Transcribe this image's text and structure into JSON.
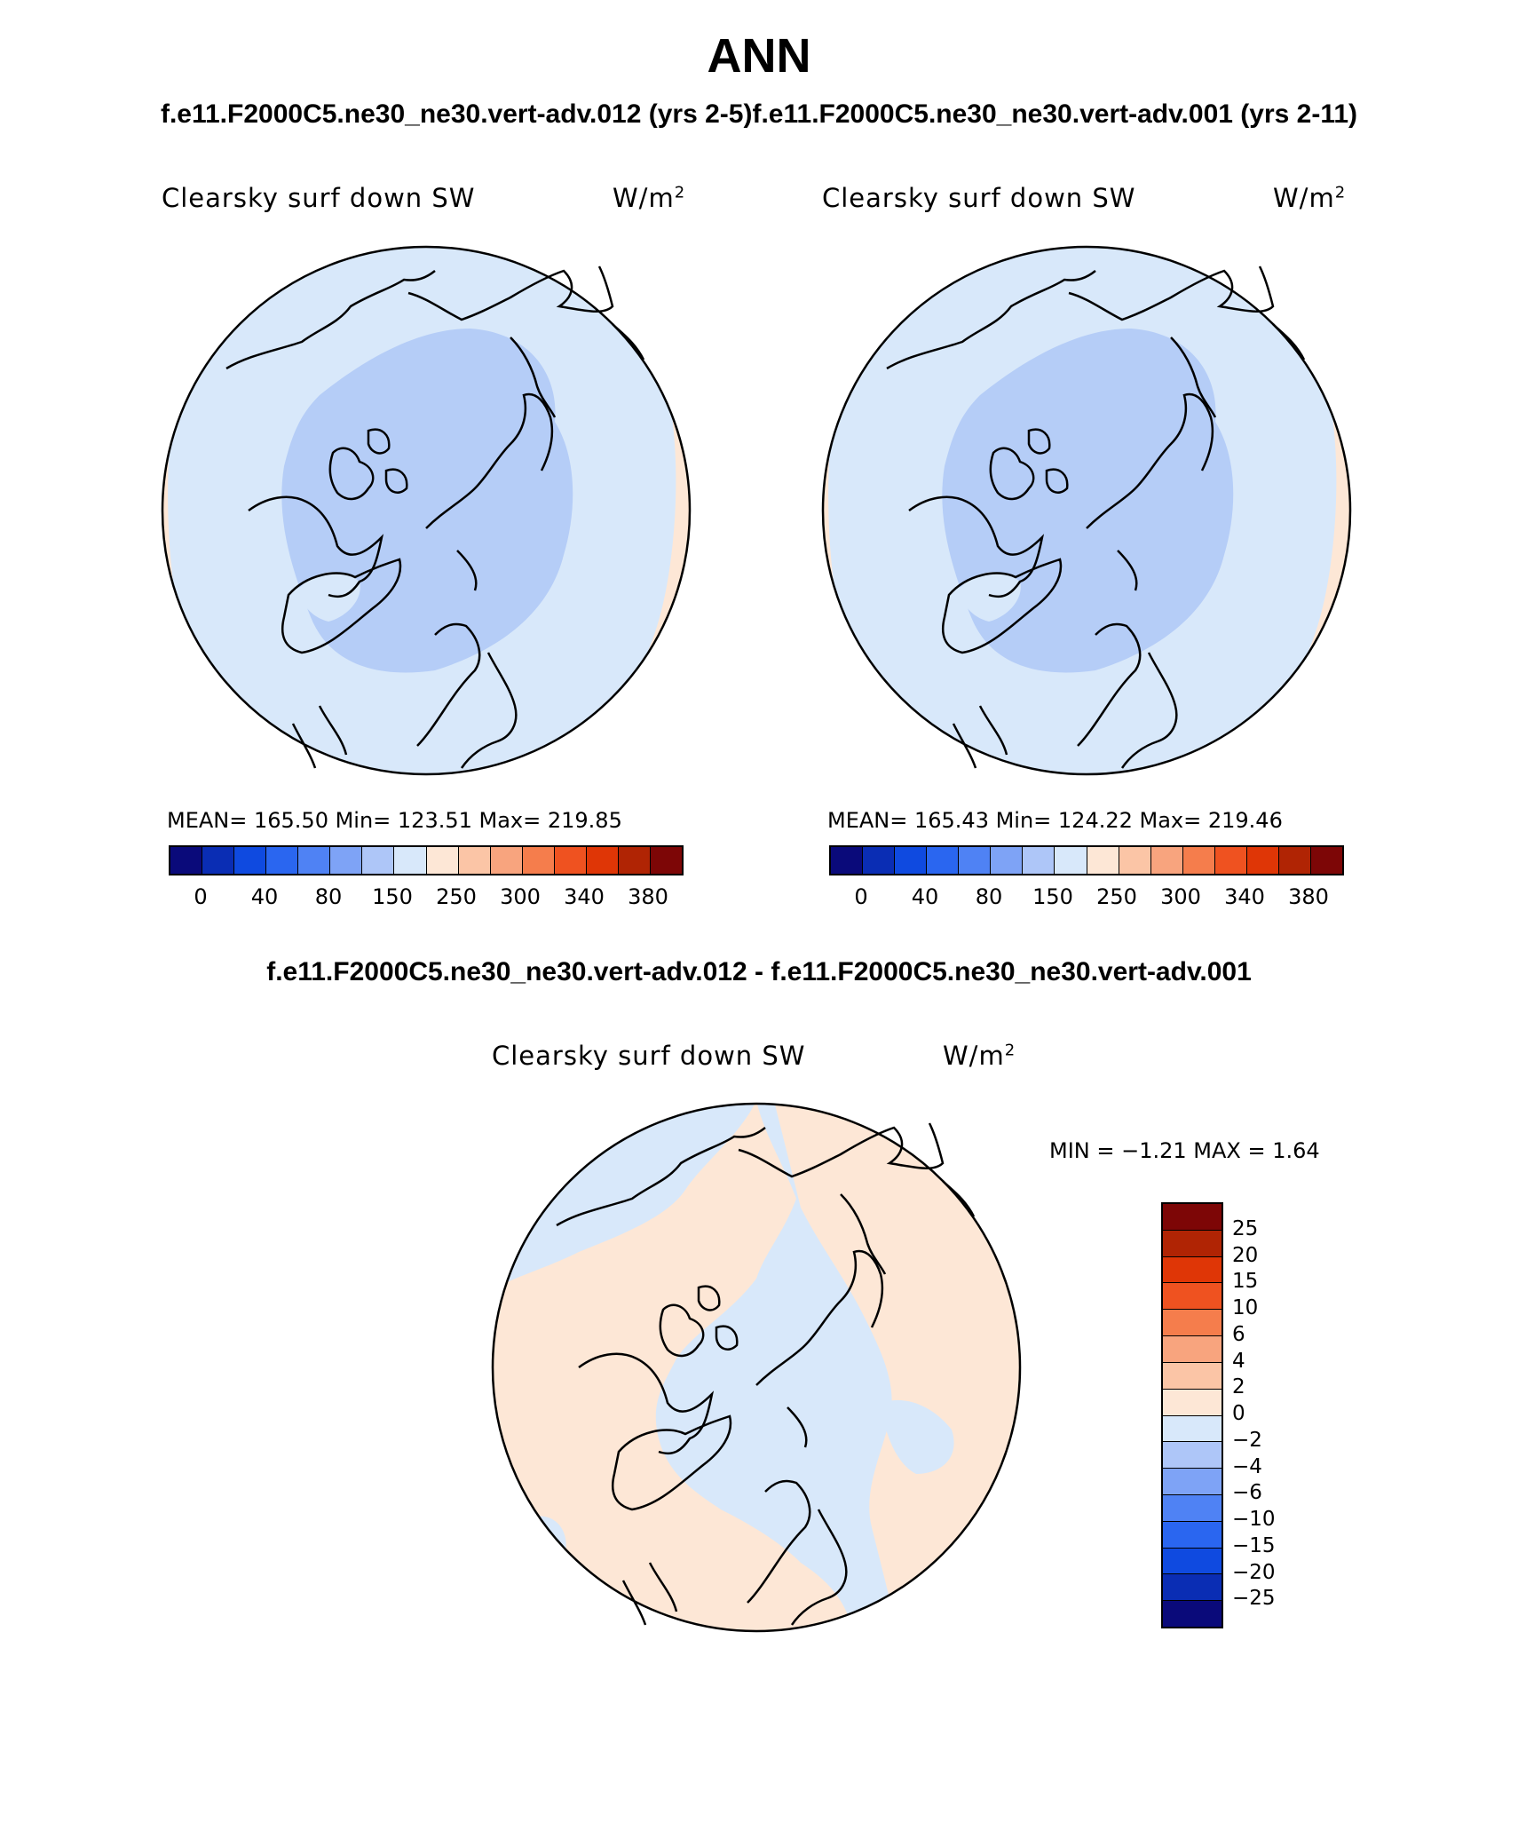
{
  "header": {
    "title": "ANN",
    "case_left": "f.e11.F2000C5.ne30_ne30.vert-adv.012 (yrs 2-5)",
    "case_right": "f.e11.F2000C5.ne30_ne30.vert-adv.001 (yrs 2-11)",
    "diff_title": "f.e11.F2000C5.ne30_ne30.vert-adv.012 - f.e11.F2000C5.ne30_ne30.vert-adv.001"
  },
  "panels": [
    {
      "variable": "Clearsky surf down SW",
      "units": "W/m",
      "units_exp": "2",
      "stats": "MEAN= 165.50   Min= 123.51   Max= 219.85"
    },
    {
      "variable": "Clearsky surf down SW",
      "units": "W/m",
      "units_exp": "2",
      "stats": "MEAN= 165.43   Min= 124.22   Max= 219.46"
    }
  ],
  "diff_panel": {
    "variable": "Clearsky surf down SW",
    "units": "W/m",
    "units_exp": "2",
    "stats": "MIN =  −1.21  MAX =    1.64"
  },
  "colorbar_abs": {
    "colors": [
      "#0a0a7a",
      "#0a2db4",
      "#0f4ae0",
      "#2a66f0",
      "#4f82f4",
      "#7ea3f6",
      "#aec6f8",
      "#d8e8fa",
      "#fde7d6",
      "#fbc5a6",
      "#f8a47e",
      "#f57d4c",
      "#ef5220",
      "#df3606",
      "#b02404",
      "#7d0606"
    ],
    "tick_labels": [
      "0",
      "40",
      "80",
      "150",
      "250",
      "300",
      "340",
      "380"
    ]
  },
  "colorbar_diff": {
    "colors": [
      "#7d0606",
      "#b02404",
      "#df3606",
      "#ef5220",
      "#f57d4c",
      "#f8a47e",
      "#fbc5a6",
      "#fde7d6",
      "#d8e8fa",
      "#aec6f8",
      "#7ea3f6",
      "#4f82f4",
      "#2a66f0",
      "#0f4ae0",
      "#0a2db4",
      "#0a0a7a"
    ],
    "tick_labels": [
      "25",
      "20",
      "15",
      "10",
      "6",
      "4",
      "2",
      "0",
      "−2",
      "−4",
      "−6",
      "−10",
      "−15",
      "−20",
      "−25"
    ]
  },
  "map_colors": {
    "outer": "#fde7d6",
    "mid": "#d8e8fa",
    "inner": "#b5cdf7",
    "greenland_low": "#d8e8fa",
    "coast": "#000000"
  }
}
